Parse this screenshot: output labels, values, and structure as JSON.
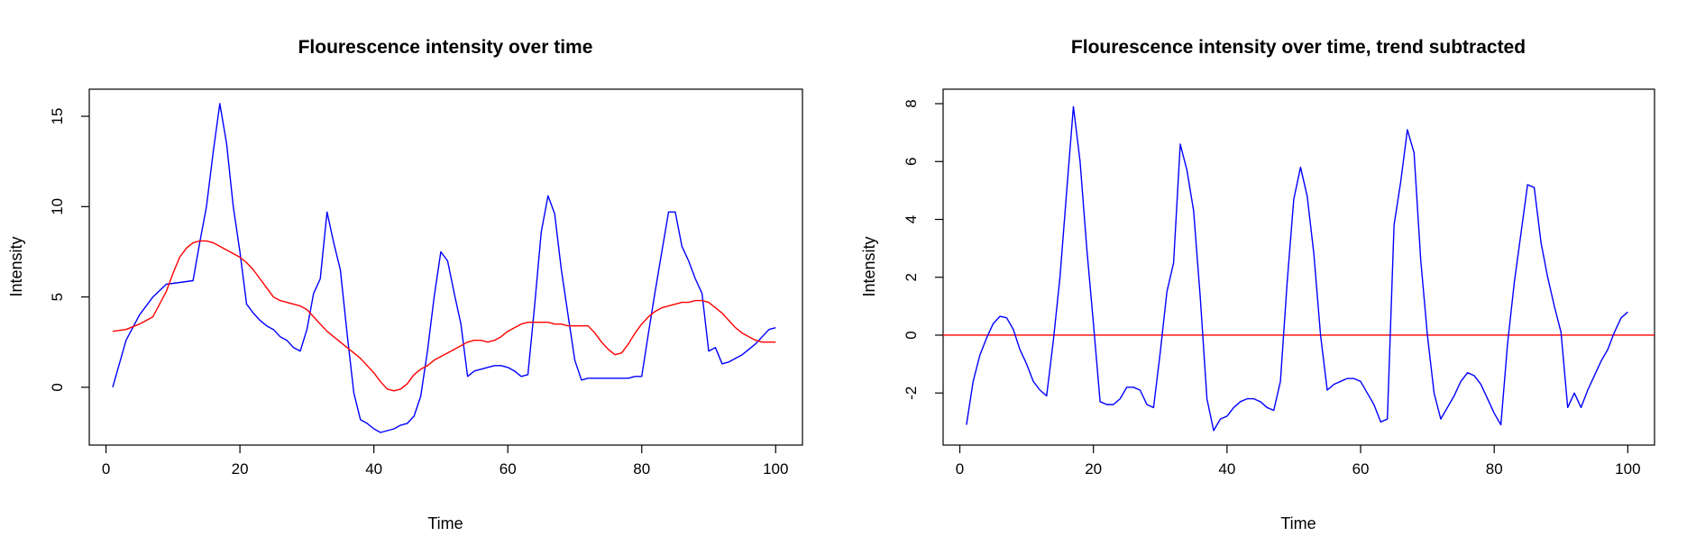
{
  "chart_data": [
    {
      "type": "line",
      "title": "Flourescence intensity over time",
      "xlabel": "Time",
      "ylabel": "Intensity",
      "xlim": [
        -2.5,
        104
      ],
      "ylim": [
        -3.2,
        16.5
      ],
      "xticks": [
        0,
        20,
        40,
        60,
        80,
        100
      ],
      "yticks": [
        0,
        5,
        10,
        15
      ],
      "grid": false,
      "legend": "none",
      "series": [
        {
          "color": "#0000ff",
          "x": [
            1,
            3,
            5,
            7,
            9,
            11,
            13,
            14,
            15,
            16,
            17,
            18,
            19,
            20,
            21,
            22,
            23,
            24,
            25,
            26,
            27,
            28,
            29,
            30,
            31,
            32,
            33,
            34,
            35,
            36,
            37,
            38,
            39,
            40,
            41,
            42,
            43,
            44,
            45,
            46,
            47,
            48,
            49,
            50,
            51,
            52,
            53,
            54,
            55,
            56,
            57,
            58,
            59,
            60,
            61,
            62,
            63,
            64,
            65,
            66,
            67,
            68,
            69,
            70,
            71,
            72,
            73,
            74,
            75,
            76,
            77,
            78,
            79,
            80,
            81,
            82,
            83,
            84,
            85,
            86,
            87,
            88,
            89,
            90,
            91,
            92,
            93,
            94,
            95,
            96,
            97,
            98,
            99,
            100
          ],
          "y": [
            0,
            2.6,
            4,
            5,
            5.7,
            5.8,
            5.9,
            8,
            10,
            13,
            15.7,
            13.5,
            10,
            7.5,
            4.6,
            4.1,
            3.7,
            3.4,
            3.2,
            2.8,
            2.6,
            2.2,
            2,
            3.2,
            5.2,
            6,
            9.7,
            8,
            6.5,
            3,
            -0.3,
            -1.8,
            -2,
            -2.3,
            -2.5,
            -2.4,
            -2.3,
            -2.1,
            -2,
            -1.6,
            -0.5,
            2,
            5,
            7.5,
            7,
            5.2,
            3.5,
            0.6,
            0.9,
            1,
            1.1,
            1.2,
            1.2,
            1.1,
            0.9,
            0.6,
            0.7,
            4.5,
            8.6,
            10.6,
            9.6,
            6.5,
            4,
            1.5,
            0.4,
            0.5,
            0.5,
            0.5,
            0.5,
            0.5,
            0.5,
            0.5,
            0.6,
            0.6,
            3,
            5.3,
            7.5,
            9.7,
            9.7,
            7.8,
            7,
            6,
            5.2,
            2,
            2.2,
            1.3,
            1.4,
            1.6,
            1.8,
            2.1,
            2.4,
            2.8,
            3.2,
            3.3
          ]
        },
        {
          "color": "#ff0000",
          "x": [
            1,
            3,
            5,
            7,
            9,
            10,
            11,
            12,
            13,
            14,
            15,
            16,
            17,
            18,
            19,
            20,
            21,
            22,
            23,
            24,
            25,
            26,
            27,
            28,
            29,
            30,
            31,
            32,
            33,
            34,
            35,
            36,
            37,
            38,
            39,
            40,
            41,
            42,
            43,
            44,
            45,
            46,
            47,
            48,
            49,
            50,
            51,
            52,
            53,
            54,
            55,
            56,
            57,
            58,
            59,
            60,
            61,
            62,
            63,
            64,
            65,
            66,
            67,
            68,
            69,
            70,
            71,
            72,
            73,
            74,
            75,
            76,
            77,
            78,
            79,
            80,
            81,
            82,
            83,
            84,
            85,
            86,
            87,
            88,
            89,
            90,
            91,
            92,
            93,
            94,
            95,
            96,
            97,
            98,
            99,
            100
          ],
          "y": [
            3.1,
            3.2,
            3.5,
            3.9,
            5.3,
            6.3,
            7.2,
            7.7,
            8,
            8.1,
            8.1,
            8,
            7.8,
            7.6,
            7.4,
            7.2,
            6.9,
            6.5,
            6,
            5.5,
            5,
            4.8,
            4.7,
            4.6,
            4.5,
            4.3,
            3.9,
            3.5,
            3.1,
            2.8,
            2.5,
            2.2,
            1.9,
            1.6,
            1.2,
            0.8,
            0.3,
            -0.1,
            -0.2,
            -0.1,
            0.2,
            0.7,
            1,
            1.2,
            1.5,
            1.7,
            1.9,
            2.1,
            2.3,
            2.5,
            2.6,
            2.6,
            2.5,
            2.6,
            2.8,
            3.1,
            3.3,
            3.5,
            3.6,
            3.6,
            3.6,
            3.6,
            3.5,
            3.5,
            3.4,
            3.4,
            3.4,
            3.4,
            3,
            2.5,
            2.1,
            1.8,
            1.9,
            2.4,
            3,
            3.5,
            3.9,
            4.2,
            4.4,
            4.5,
            4.6,
            4.7,
            4.7,
            4.8,
            4.8,
            4.7,
            4.4,
            4.1,
            3.7,
            3.3,
            3,
            2.8,
            2.6,
            2.5,
            2.5,
            2.5
          ]
        }
      ]
    },
    {
      "type": "line",
      "title": "Flourescence intensity over time, trend subtracted",
      "xlabel": "Time",
      "ylabel": "Intensity",
      "xlim": [
        -2.5,
        104
      ],
      "ylim": [
        -3.8,
        8.5
      ],
      "xticks": [
        0,
        20,
        40,
        60,
        80,
        100
      ],
      "yticks": [
        -2,
        0,
        2,
        4,
        6,
        8
      ],
      "grid": false,
      "legend": "none",
      "hline": {
        "y": 0,
        "color": "#ff0000"
      },
      "series": [
        {
          "color": "#0000ff",
          "x": [
            1,
            2,
            3,
            4,
            5,
            6,
            7,
            8,
            9,
            10,
            11,
            12,
            13,
            14,
            15,
            16,
            17,
            18,
            19,
            20,
            21,
            22,
            23,
            24,
            25,
            26,
            27,
            28,
            29,
            30,
            31,
            32,
            33,
            34,
            35,
            36,
            37,
            38,
            39,
            40,
            41,
            42,
            43,
            44,
            45,
            46,
            47,
            48,
            49,
            50,
            51,
            52,
            53,
            54,
            55,
            56,
            57,
            58,
            59,
            60,
            61,
            62,
            63,
            64,
            65,
            66,
            67,
            68,
            69,
            70,
            71,
            72,
            73,
            74,
            75,
            76,
            77,
            78,
            79,
            80,
            81,
            82,
            83,
            84,
            85,
            86,
            87,
            88,
            89,
            90,
            91,
            92,
            93,
            94,
            95,
            96,
            97,
            98,
            99,
            100
          ],
          "y": [
            -3.1,
            -1.6,
            -0.7,
            -0.1,
            0.4,
            0.65,
            0.6,
            0.2,
            -0.5,
            -1,
            -1.6,
            -1.9,
            -2.1,
            -0.2,
            2,
            5,
            7.9,
            6,
            3,
            0.4,
            -2.3,
            -2.4,
            -2.4,
            -2.2,
            -1.8,
            -1.8,
            -1.9,
            -2.4,
            -2.5,
            -0.6,
            1.5,
            2.5,
            6.6,
            5.7,
            4.3,
            1.3,
            -2.2,
            -3.3,
            -2.9,
            -2.8,
            -2.5,
            -2.3,
            -2.2,
            -2.2,
            -2.3,
            -2.5,
            -2.6,
            -1.6,
            1.8,
            4.7,
            5.8,
            4.8,
            2.8,
            0,
            -1.9,
            -1.7,
            -1.6,
            -1.5,
            -1.5,
            -1.6,
            -2,
            -2.4,
            -3,
            -2.9,
            3.8,
            5.3,
            7.1,
            6.3,
            2.6,
            0,
            -2,
            -2.9,
            -2.5,
            -2.1,
            -1.6,
            -1.3,
            -1.4,
            -1.7,
            -2.2,
            -2.7,
            -3.1,
            -0.3,
            1.8,
            3.5,
            5.2,
            5.1,
            3.2,
            2,
            1,
            0.1,
            -2.5,
            -2,
            -2.5,
            -1.9,
            -1.4,
            -0.9,
            -0.5,
            0.1,
            0.6,
            0.8
          ]
        }
      ]
    }
  ]
}
